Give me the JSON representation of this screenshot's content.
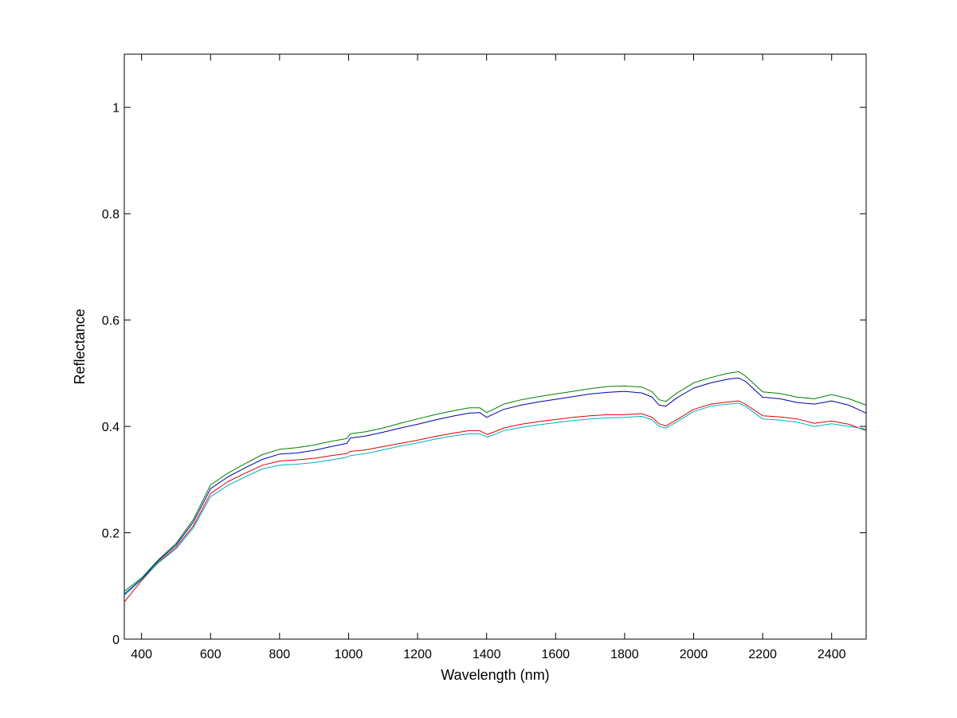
{
  "chart_data": {
    "type": "line",
    "title": "",
    "xlabel": "Wavelength (nm)",
    "ylabel": "Reflectance",
    "xlim": [
      350,
      2500
    ],
    "ylim": [
      0,
      1.1
    ],
    "xticks": [
      400,
      600,
      800,
      1000,
      1200,
      1400,
      1600,
      1800,
      2000,
      2200,
      2400
    ],
    "yticks": [
      0,
      0.2,
      0.4,
      0.6,
      0.8,
      1
    ],
    "xtick_labels": [
      "400",
      "600",
      "800",
      "1000",
      "1200",
      "1400",
      "1600",
      "1800",
      "2000",
      "2200",
      "2400"
    ],
    "ytick_labels": [
      "0",
      "0.2",
      "0.4",
      "0.6",
      "0.8",
      "1"
    ],
    "grid": false,
    "legend": "none",
    "x": [
      350,
      400,
      450,
      500,
      550,
      600,
      650,
      700,
      750,
      800,
      850,
      900,
      950,
      995,
      1005,
      1050,
      1100,
      1150,
      1200,
      1250,
      1300,
      1350,
      1380,
      1400,
      1420,
      1450,
      1500,
      1550,
      1600,
      1650,
      1700,
      1750,
      1800,
      1850,
      1880,
      1900,
      1920,
      1950,
      2000,
      2050,
      2100,
      2130,
      2150,
      2200,
      2250,
      2300,
      2350,
      2400,
      2450,
      2500
    ],
    "series": [
      {
        "color": "#008000",
        "values": [
          0.09,
          0.115,
          0.15,
          0.18,
          0.225,
          0.29,
          0.312,
          0.33,
          0.347,
          0.357,
          0.36,
          0.365,
          0.372,
          0.377,
          0.386,
          0.39,
          0.397,
          0.406,
          0.414,
          0.422,
          0.429,
          0.435,
          0.435,
          0.426,
          0.432,
          0.442,
          0.45,
          0.456,
          0.461,
          0.466,
          0.471,
          0.475,
          0.476,
          0.474,
          0.465,
          0.45,
          0.447,
          0.462,
          0.482,
          0.492,
          0.5,
          0.503,
          0.495,
          0.465,
          0.462,
          0.455,
          0.452,
          0.46,
          0.452,
          0.44
        ]
      },
      {
        "color": "#0000b0",
        "values": [
          0.085,
          0.113,
          0.148,
          0.177,
          0.22,
          0.283,
          0.305,
          0.322,
          0.338,
          0.348,
          0.35,
          0.355,
          0.362,
          0.368,
          0.378,
          0.382,
          0.389,
          0.397,
          0.404,
          0.412,
          0.419,
          0.425,
          0.426,
          0.417,
          0.423,
          0.432,
          0.44,
          0.446,
          0.451,
          0.456,
          0.461,
          0.464,
          0.466,
          0.463,
          0.455,
          0.44,
          0.438,
          0.453,
          0.472,
          0.482,
          0.489,
          0.491,
          0.485,
          0.455,
          0.452,
          0.445,
          0.442,
          0.448,
          0.44,
          0.425
        ]
      },
      {
        "color": "#e00000",
        "values": [
          0.07,
          0.11,
          0.145,
          0.173,
          0.213,
          0.274,
          0.296,
          0.312,
          0.327,
          0.335,
          0.337,
          0.34,
          0.345,
          0.349,
          0.353,
          0.356,
          0.362,
          0.368,
          0.374,
          0.381,
          0.387,
          0.392,
          0.392,
          0.385,
          0.389,
          0.397,
          0.404,
          0.409,
          0.413,
          0.417,
          0.42,
          0.422,
          0.422,
          0.424,
          0.417,
          0.405,
          0.401,
          0.412,
          0.432,
          0.442,
          0.446,
          0.448,
          0.442,
          0.42,
          0.418,
          0.414,
          0.406,
          0.41,
          0.404,
          0.392
        ]
      },
      {
        "color": "#00b0c0",
        "values": [
          0.082,
          0.112,
          0.144,
          0.17,
          0.209,
          0.268,
          0.289,
          0.305,
          0.32,
          0.327,
          0.329,
          0.332,
          0.337,
          0.342,
          0.345,
          0.349,
          0.356,
          0.363,
          0.369,
          0.376,
          0.382,
          0.386,
          0.386,
          0.38,
          0.384,
          0.392,
          0.398,
          0.403,
          0.407,
          0.411,
          0.414,
          0.416,
          0.417,
          0.419,
          0.412,
          0.4,
          0.397,
          0.408,
          0.428,
          0.438,
          0.442,
          0.444,
          0.438,
          0.414,
          0.412,
          0.408,
          0.4,
          0.405,
          0.4,
          0.395
        ]
      }
    ]
  }
}
